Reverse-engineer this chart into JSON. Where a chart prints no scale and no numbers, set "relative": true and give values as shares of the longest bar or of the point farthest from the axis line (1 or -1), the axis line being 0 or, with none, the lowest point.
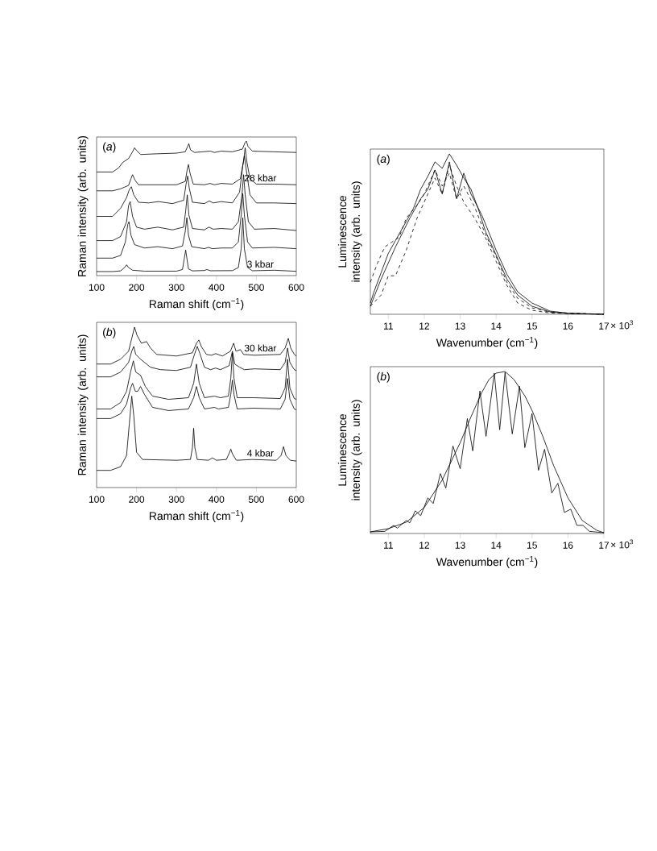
{
  "chart_data": [
    {
      "type": "line",
      "title": "(*a*)",
      "xlabel": "Raman shift (cm$^{−1}$)",
      "ylabel": "Raman intensity (arb. units)",
      "relative": true,
      "xlim": [
        100,
        600
      ],
      "xticks": [
        100,
        200,
        300,
        400,
        500,
        600
      ],
      "series": [
        {
          "name": "3 kbar",
          "color": "#000000",
          "x": [
            100,
            140,
            160,
            170,
            175,
            180,
            190,
            220,
            300,
            315,
            323,
            330,
            340,
            370,
            376,
            385,
            440,
            455,
            462,
            466,
            470,
            478,
            490,
            545,
            600
          ],
          "values": [
            0.03,
            0.03,
            0.035,
            0.06,
            0.08,
            0.06,
            0.04,
            0.033,
            0.033,
            0.045,
            0.19,
            0.05,
            0.035,
            0.038,
            0.045,
            0.036,
            0.037,
            0.06,
            0.2,
            0.43,
            0.2,
            0.06,
            0.036,
            0.04,
            0.032
          ]
        },
        {
          "color": "#000000",
          "x": [
            100,
            140,
            160,
            172,
            178,
            181,
            186,
            195,
            220,
            253,
            290,
            315,
            322,
            326,
            330,
            338,
            370,
            380,
            390,
            412,
            440,
            455,
            462,
            466,
            470,
            478,
            490,
            545,
            600
          ],
          "values": [
            0.13,
            0.13,
            0.15,
            0.25,
            0.38,
            0.4,
            0.3,
            0.23,
            0.205,
            0.215,
            0.2,
            0.22,
            0.33,
            0.43,
            0.3,
            0.215,
            0.2,
            0.21,
            0.2,
            0.205,
            0.205,
            0.25,
            0.45,
            0.61,
            0.45,
            0.25,
            0.205,
            0.21,
            0.2
          ]
        },
        {
          "color": "#000000",
          "x": [
            100,
            140,
            160,
            175,
            180,
            184,
            190,
            200,
            220,
            253,
            290,
            318,
            323,
            327,
            331,
            340,
            370,
            381,
            392,
            412,
            440,
            455,
            464,
            468,
            472,
            480,
            495,
            545,
            600
          ],
          "values": [
            0.26,
            0.26,
            0.29,
            0.4,
            0.52,
            0.55,
            0.44,
            0.36,
            0.345,
            0.36,
            0.34,
            0.36,
            0.48,
            0.6,
            0.45,
            0.35,
            0.34,
            0.36,
            0.345,
            0.35,
            0.345,
            0.4,
            0.6,
            0.75,
            0.6,
            0.4,
            0.345,
            0.35,
            0.335
          ]
        },
        {
          "color": "#000000",
          "x": [
            100,
            140,
            160,
            175,
            182,
            187,
            193,
            205,
            230,
            255,
            290,
            318,
            324,
            328,
            332,
            340,
            370,
            382,
            392,
            412,
            440,
            458,
            466,
            470,
            474,
            484,
            500,
            545,
            600
          ],
          "values": [
            0.44,
            0.44,
            0.5,
            0.58,
            0.64,
            0.66,
            0.6,
            0.545,
            0.54,
            0.55,
            0.535,
            0.56,
            0.68,
            0.74,
            0.65,
            0.545,
            0.535,
            0.555,
            0.54,
            0.55,
            0.54,
            0.62,
            0.82,
            0.89,
            0.8,
            0.6,
            0.54,
            0.54,
            0.535
          ]
        },
        {
          "name": "28 kbar",
          "color": "#000000",
          "x": [
            100,
            140,
            160,
            180,
            186,
            190,
            196,
            205,
            255,
            300,
            322,
            327,
            330,
            334,
            342,
            370,
            384,
            395,
            412,
            440,
            460,
            468,
            472,
            476,
            484,
            500,
            545,
            600
          ],
          "values": [
            0.63,
            0.63,
            0.645,
            0.67,
            0.72,
            0.75,
            0.71,
            0.675,
            0.675,
            0.675,
            0.7,
            0.79,
            0.825,
            0.76,
            0.68,
            0.675,
            0.685,
            0.675,
            0.685,
            0.68,
            0.72,
            0.85,
            0.95,
            0.85,
            0.72,
            0.68,
            0.68,
            0.675
          ]
        },
        {
          "color": "#000000",
          "x": [
            100,
            140,
            155,
            165,
            180,
            190,
            195,
            200,
            210,
            250,
            300,
            322,
            328,
            331,
            335,
            345,
            385,
            395,
            412,
            440,
            465,
            472,
            475,
            479,
            490,
            545,
            600
          ],
          "values": [
            0.77,
            0.77,
            0.8,
            0.84,
            0.87,
            0.92,
            0.95,
            0.93,
            0.9,
            0.905,
            0.91,
            0.92,
            0.96,
            0.98,
            0.935,
            0.915,
            0.925,
            0.915,
            0.925,
            0.92,
            0.94,
            0.99,
            1.0,
            0.96,
            0.925,
            0.92,
            0.915
          ]
        }
      ]
    },
    {
      "type": "line",
      "title": "(*a*)",
      "xlabel": "Wavenumber (cm$^{−1}$)",
      "ylabel": "Luminescence intensity (arb. units)",
      "relative": true,
      "xlim": [
        10.5,
        17
      ],
      "xticks": [
        11,
        12,
        13,
        14,
        15,
        16,
        17
      ],
      "annotations": [
        "× 10$^{3}$"
      ],
      "series": [
        {
          "color": "#000000",
          "line_style": "solid",
          "x": [
            10.5,
            10.6,
            10.8,
            11.0,
            11.2,
            11.5,
            11.7,
            11.9,
            12.1,
            12.3,
            12.5,
            12.7,
            12.9,
            13.1,
            13.3,
            13.5,
            13.7,
            14.0,
            14.3,
            14.6,
            15.0,
            15.5,
            16.0,
            17.0
          ],
          "values": [
            0.07,
            0.14,
            0.26,
            0.38,
            0.46,
            0.58,
            0.66,
            0.78,
            0.86,
            0.95,
            0.91,
            1.0,
            0.93,
            0.85,
            0.78,
            0.66,
            0.52,
            0.37,
            0.22,
            0.12,
            0.05,
            0.015,
            0.005,
            0.0
          ]
        },
        {
          "color": "#000000",
          "line_style": "solid",
          "x": [
            10.5,
            10.8,
            11.2,
            11.6,
            11.9,
            12.1,
            12.3,
            12.5,
            12.7,
            12.9,
            13.1,
            13.3,
            13.6,
            14.0,
            14.3,
            14.6,
            15.0,
            15.5,
            16.0,
            17.0
          ],
          "values": [
            0.05,
            0.22,
            0.42,
            0.6,
            0.72,
            0.78,
            0.9,
            0.75,
            0.95,
            0.72,
            0.88,
            0.75,
            0.62,
            0.4,
            0.25,
            0.14,
            0.07,
            0.02,
            0.007,
            0.0
          ]
        },
        {
          "color": "#000000",
          "line_style": "dashed",
          "x": [
            10.5,
            10.8,
            11.0,
            11.2,
            11.5,
            11.8,
            12.0,
            12.3,
            12.5,
            12.7,
            12.9,
            13.1,
            13.4,
            13.7,
            14.0,
            14.3,
            14.6,
            15.0,
            15.5,
            17.0
          ],
          "values": [
            0.05,
            0.12,
            0.24,
            0.24,
            0.4,
            0.6,
            0.7,
            0.85,
            0.75,
            0.93,
            0.8,
            0.7,
            0.6,
            0.48,
            0.33,
            0.18,
            0.07,
            0.025,
            0.008,
            0.0
          ]
        },
        {
          "color": "#000000",
          "line_style": "dashed",
          "x": [
            10.5,
            10.7,
            10.9,
            11.1,
            11.3,
            11.5,
            11.8,
            12.0,
            12.3,
            12.5,
            12.7,
            12.9,
            13.1,
            13.4,
            13.7,
            14.0,
            14.3,
            14.6,
            15.0,
            15.5,
            17.0
          ],
          "values": [
            0.2,
            0.32,
            0.42,
            0.45,
            0.48,
            0.6,
            0.68,
            0.75,
            0.9,
            0.8,
            0.88,
            0.72,
            0.8,
            0.67,
            0.5,
            0.36,
            0.2,
            0.1,
            0.04,
            0.012,
            0.0
          ]
        }
      ]
    },
    {
      "type": "line",
      "title": "(*b*)",
      "xlabel": "Raman shift (cm$^{−1}$)",
      "ylabel": "Raman intensity (arb. units)",
      "relative": true,
      "xlim": [
        100,
        600
      ],
      "xticks": [
        100,
        200,
        300,
        400,
        500,
        600
      ],
      "series": [
        {
          "name": "4 kbar",
          "color": "#000000",
          "x": [
            100,
            135,
            160,
            175,
            182,
            188,
            193,
            200,
            215,
            300,
            335,
            340,
            343,
            346,
            352,
            380,
            390,
            400,
            425,
            433,
            436,
            440,
            450,
            490,
            550,
            562,
            568,
            574,
            585,
            600
          ],
          "values": [
            0.107,
            0.107,
            0.13,
            0.2,
            0.4,
            0.57,
            0.45,
            0.22,
            0.175,
            0.17,
            0.175,
            0.25,
            0.37,
            0.25,
            0.175,
            0.17,
            0.185,
            0.17,
            0.175,
            0.22,
            0.24,
            0.21,
            0.17,
            0.175,
            0.17,
            0.2,
            0.255,
            0.2,
            0.17,
            0.165
          ]
        },
        {
          "color": "#000000",
          "x": [
            100,
            135,
            160,
            175,
            185,
            190,
            197,
            203,
            210,
            220,
            240,
            280,
            330,
            343,
            350,
            357,
            370,
            395,
            405,
            430,
            436,
            440,
            444,
            452,
            493,
            560,
            572,
            578,
            584,
            595,
            600
          ],
          "values": [
            0.43,
            0.43,
            0.46,
            0.52,
            0.62,
            0.65,
            0.6,
            0.6,
            0.63,
            0.58,
            0.5,
            0.48,
            0.49,
            0.56,
            0.63,
            0.56,
            0.49,
            0.5,
            0.49,
            0.5,
            0.58,
            0.67,
            0.58,
            0.49,
            0.495,
            0.49,
            0.55,
            0.68,
            0.55,
            0.49,
            0.485
          ]
        },
        {
          "color": "#000000",
          "x": [
            100,
            135,
            160,
            175,
            185,
            192,
            198,
            210,
            222,
            240,
            280,
            330,
            343,
            350,
            357,
            370,
            395,
            410,
            430,
            436,
            440,
            444,
            452,
            493,
            560,
            572,
            578,
            584,
            595,
            600
          ],
          "values": [
            0.49,
            0.49,
            0.53,
            0.6,
            0.72,
            0.79,
            0.72,
            0.7,
            0.63,
            0.57,
            0.55,
            0.56,
            0.65,
            0.77,
            0.65,
            0.56,
            0.57,
            0.56,
            0.57,
            0.68,
            0.84,
            0.68,
            0.56,
            0.56,
            0.555,
            0.62,
            0.8,
            0.62,
            0.555,
            0.55
          ]
        },
        {
          "color": "#000000",
          "x": [
            100,
            135,
            160,
            180,
            188,
            193,
            198,
            210,
            220,
            235,
            260,
            300,
            335,
            345,
            352,
            358,
            370,
            385,
            398,
            410,
            432,
            440,
            446,
            458,
            470,
            495,
            560,
            572,
            578,
            584,
            595,
            600
          ],
          "values": [
            0.69,
            0.69,
            0.72,
            0.78,
            0.85,
            0.88,
            0.83,
            0.8,
            0.78,
            0.75,
            0.735,
            0.73,
            0.75,
            0.83,
            0.88,
            0.84,
            0.75,
            0.735,
            0.745,
            0.735,
            0.76,
            0.85,
            0.77,
            0.75,
            0.735,
            0.74,
            0.735,
            0.78,
            0.87,
            0.78,
            0.735,
            0.73
          ]
        },
        {
          "name": "30 kbar",
          "color": "#000000",
          "x": [
            100,
            135,
            160,
            180,
            190,
            195,
            201,
            212,
            225,
            235,
            250,
            300,
            340,
            350,
            356,
            362,
            375,
            388,
            398,
            415,
            435,
            443,
            449,
            460,
            468,
            495,
            560,
            572,
            580,
            586,
            595,
            600
          ],
          "values": [
            0.77,
            0.77,
            0.8,
            0.85,
            0.95,
            1.0,
            0.95,
            0.9,
            0.91,
            0.87,
            0.83,
            0.82,
            0.84,
            0.9,
            0.92,
            0.88,
            0.83,
            0.825,
            0.835,
            0.82,
            0.85,
            0.9,
            0.85,
            0.86,
            0.83,
            0.825,
            0.83,
            0.87,
            0.93,
            0.87,
            0.83,
            0.82
          ]
        }
      ]
    },
    {
      "type": "line",
      "title": "(*b*)",
      "xlabel": "Wavenumber (cm$^{−1}$)",
      "ylabel": "Luminescence intensity (arb. units)",
      "relative": true,
      "xlim": [
        10.5,
        17
      ],
      "xticks": [
        11,
        12,
        13,
        14,
        15,
        16,
        17
      ],
      "annotations": [
        "× 10$^{3}$"
      ],
      "series": [
        {
          "color": "#000000",
          "x": [
            10.5,
            11.0,
            11.5,
            12.0,
            12.5,
            13.0,
            13.3,
            13.6,
            13.8,
            14.0,
            14.25,
            14.5,
            14.8,
            15.0,
            15.3,
            15.6,
            16.0,
            16.4,
            16.8,
            17.0
          ],
          "values": [
            0.01,
            0.03,
            0.07,
            0.16,
            0.33,
            0.56,
            0.72,
            0.87,
            0.95,
            0.99,
            1.0,
            0.95,
            0.85,
            0.76,
            0.6,
            0.42,
            0.22,
            0.08,
            0.02,
            0.005
          ]
        },
        {
          "color": "#000000",
          "x": [
            10.5,
            10.9,
            11.15,
            11.25,
            11.5,
            11.6,
            11.75,
            11.9,
            12.1,
            12.25,
            12.45,
            12.6,
            12.8,
            13.0,
            13.2,
            13.35,
            13.55,
            13.72,
            13.95,
            14.1,
            14.25,
            14.45,
            14.65,
            14.8,
            15.0,
            15.18,
            15.35,
            15.55,
            15.72,
            15.9,
            16.08,
            16.25,
            16.42,
            16.6,
            17.0
          ],
          "values": [
            0.01,
            0.013,
            0.05,
            0.033,
            0.08,
            0.066,
            0.14,
            0.11,
            0.22,
            0.185,
            0.37,
            0.28,
            0.54,
            0.4,
            0.71,
            0.51,
            0.88,
            0.6,
            0.99,
            0.64,
            0.995,
            0.615,
            0.91,
            0.53,
            0.74,
            0.39,
            0.52,
            0.25,
            0.31,
            0.13,
            0.15,
            0.05,
            0.05,
            0.013,
            0.005
          ]
        }
      ]
    }
  ]
}
